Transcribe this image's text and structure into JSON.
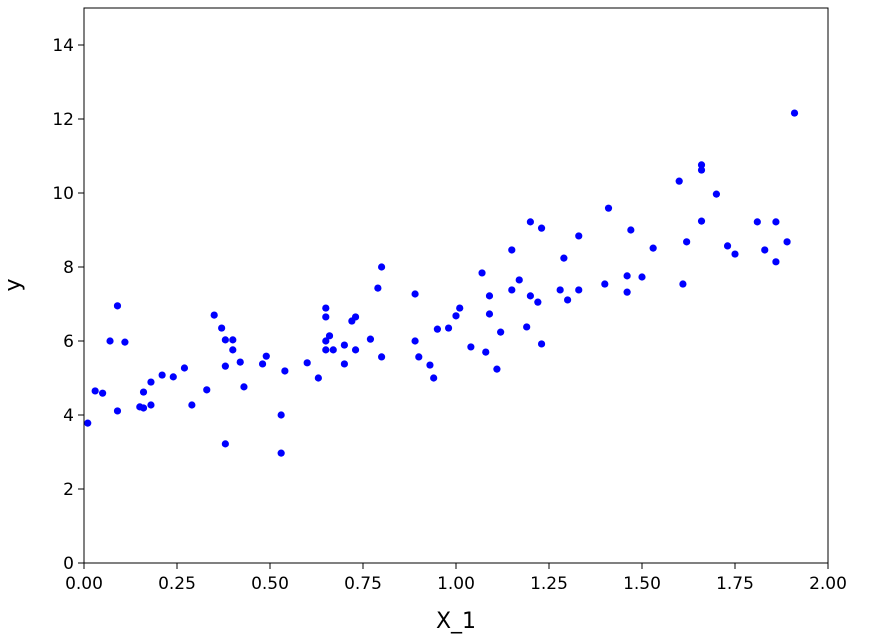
{
  "chart_data": {
    "type": "scatter",
    "x_label": "X_1",
    "y_label": "y",
    "color": "#0000ff",
    "xlim": [
      0,
      2
    ],
    "ylim": [
      0,
      15
    ],
    "xticks": [
      {
        "value": 0,
        "label": "0.00"
      },
      {
        "value": 0.25,
        "label": "0.25"
      },
      {
        "value": 0.5,
        "label": "0.50"
      },
      {
        "value": 0.75,
        "label": "0.75"
      },
      {
        "value": 1,
        "label": "1.00"
      },
      {
        "value": 1.25,
        "label": "1.25"
      },
      {
        "value": 1.5,
        "label": "1.50"
      },
      {
        "value": 1.75,
        "label": "1.75"
      },
      {
        "value": 2,
        "label": "2.00"
      }
    ],
    "yticks": [
      0,
      2,
      4,
      6,
      8,
      10,
      12,
      14
    ],
    "x": [
      0.01,
      0.03,
      0.05,
      0.07,
      0.09,
      0.09,
      0.11,
      0.15,
      0.16,
      0.16,
      0.18,
      0.18,
      0.21,
      0.24,
      0.27,
      0.29,
      0.33,
      0.35,
      0.37,
      0.38,
      0.38,
      0.38,
      0.4,
      0.4,
      0.42,
      0.43,
      0.48,
      0.49,
      0.53,
      0.53,
      0.54,
      0.6,
      0.63,
      0.65,
      0.65,
      0.65,
      0.65,
      0.66,
      0.67,
      0.7,
      0.7,
      0.72,
      0.73,
      0.73,
      0.77,
      0.79,
      0.8,
      0.8,
      0.89,
      0.89,
      0.9,
      0.93,
      0.94,
      0.95,
      0.98,
      1.0,
      1.01,
      1.04,
      1.07,
      1.08,
      1.09,
      1.09,
      1.11,
      1.12,
      1.15,
      1.15,
      1.17,
      1.19,
      1.2,
      1.2,
      1.22,
      1.23,
      1.23,
      1.28,
      1.29,
      1.3,
      1.33,
      1.33,
      1.4,
      1.41,
      1.46,
      1.46,
      1.47,
      1.5,
      1.53,
      1.6,
      1.61,
      1.62,
      1.66,
      1.66,
      1.66,
      1.7,
      1.73,
      1.75,
      1.81,
      1.83,
      1.86,
      1.86,
      1.89,
      1.91
    ],
    "y": [
      3.78,
      4.65,
      4.59,
      6.0,
      6.95,
      4.11,
      5.97,
      4.22,
      4.19,
      4.62,
      4.27,
      4.89,
      5.08,
      5.03,
      5.27,
      4.27,
      4.68,
      6.7,
      6.35,
      3.22,
      6.03,
      5.32,
      6.03,
      5.76,
      5.43,
      4.76,
      5.38,
      5.59,
      2.97,
      4.0,
      5.19,
      5.41,
      5.0,
      6.89,
      6.65,
      6.0,
      5.76,
      6.14,
      5.76,
      5.38,
      5.89,
      6.54,
      6.65,
      5.76,
      6.05,
      7.43,
      5.57,
      8.0,
      7.27,
      6.0,
      5.57,
      5.35,
      5.0,
      6.32,
      6.35,
      6.68,
      6.89,
      5.84,
      7.84,
      5.7,
      7.22,
      6.73,
      5.24,
      6.24,
      7.38,
      8.46,
      7.65,
      6.38,
      7.22,
      9.22,
      7.05,
      5.92,
      9.05,
      7.38,
      8.24,
      7.11,
      8.84,
      7.38,
      7.54,
      9.59,
      7.76,
      7.32,
      9.0,
      7.73,
      8.51,
      10.32,
      7.54,
      8.68,
      10.76,
      10.62,
      9.24,
      9.97,
      8.57,
      8.35,
      9.22,
      8.46,
      9.22,
      8.14,
      8.68,
      12.16
    ]
  }
}
